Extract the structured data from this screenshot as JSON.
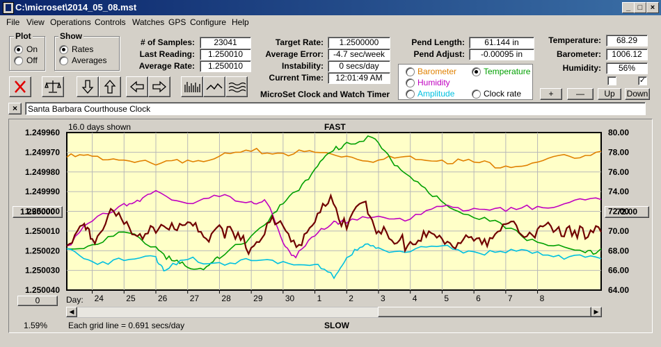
{
  "window": {
    "title": "C:\\microset\\2014_05_08.mst",
    "min": "_",
    "max": "□",
    "close": "×"
  },
  "menu": [
    "File",
    "View",
    "Operations",
    "Controls",
    "Watches",
    "GPS",
    "Configure",
    "Help"
  ],
  "plot_group": {
    "title": "Plot",
    "options": [
      {
        "label": "On",
        "selected": true
      },
      {
        "label": "Off",
        "selected": false
      }
    ]
  },
  "show_group": {
    "title": "Show",
    "options": [
      {
        "label": "Rates",
        "selected": true
      },
      {
        "label": "Averages",
        "selected": false
      }
    ]
  },
  "stats": {
    "samples_label": "# of Samples:",
    "samples": "23041",
    "last_label": "Last Reading:",
    "last": "1.250010",
    "avg_label": "Average Rate:",
    "avg": "1.250010",
    "target_label": "Target Rate:",
    "target": "1.2500000",
    "avg_err_label": "Average Error:",
    "avg_err": "-4.7 sec/week",
    "instab_label": "Instability:",
    "instab": "0 secs/day",
    "time_label": "Current Time:",
    "time": "12:01:49 AM",
    "pend_len_label": "Pend Length:",
    "pend_len": "61.144 in",
    "pend_adj_label": "Pend Adjust:",
    "pend_adj": "-0.00095 in",
    "temp_label": "Temperature:",
    "temp": "68.29",
    "baro_label": "Barometer:",
    "baro": "1006.12",
    "hum_label": "Humidity:",
    "hum": "56%"
  },
  "timer_title": "MicroSet Clock and Watch Timer",
  "sensor_options": [
    {
      "label": "Barometer",
      "color": "#e08000",
      "selected": false
    },
    {
      "label": "Temperature",
      "color": "#00a000",
      "selected": true
    },
    {
      "label": "Humidity",
      "color": "#c000c0",
      "selected": false
    },
    {
      "label": "Amplitude",
      "color": "#00c0e0",
      "selected": false
    },
    {
      "label": "Clock rate",
      "color": "#000000",
      "selected": false
    }
  ],
  "adjust_buttons": {
    "plus": "+",
    "minus": "—",
    "up": "Up",
    "down": "Down"
  },
  "checkboxes": [
    {
      "checked": false
    },
    {
      "checked": true
    }
  ],
  "clock_name": {
    "close": "×",
    "value": "Santa Barbara Courthouse Clock"
  },
  "chart_info": {
    "days_shown": "16.0 days shown",
    "fast": "FAST",
    "slow": "SLOW",
    "grid_note": "Each grid line = 0.691 secs/day",
    "percent": "1.59%",
    "day_label": "Day:",
    "left_button": "1.250000",
    "right_button": "72.00",
    "zero_button": "0"
  },
  "chart_data": {
    "type": "line",
    "x_ticks": [
      "24",
      "25",
      "26",
      "27",
      "28",
      "29",
      "30",
      "1",
      "2",
      "3",
      "4",
      "5",
      "6",
      "7",
      "8"
    ],
    "left_axis": {
      "labels": [
        "1.249960",
        "1.249970",
        "1.249980",
        "1.249990",
        "1.250000",
        "1.250010",
        "1.250020",
        "1.250030",
        "1.250040"
      ],
      "range": [
        1.24996,
        1.25004
      ],
      "inverted": true
    },
    "right_axis": {
      "labels": [
        "80.00",
        "78.00",
        "76.00",
        "74.00",
        "72.00",
        "70.00",
        "68.00",
        "66.00",
        "64.00"
      ],
      "range": [
        64,
        80
      ]
    },
    "xlim": [
      23.2,
      40.0
    ],
    "series": [
      {
        "name": "Barometer",
        "color": "#e08000",
        "axis": "right",
        "points": [
          [
            23.2,
            77.5
          ],
          [
            24,
            77.6
          ],
          [
            25,
            77.2
          ],
          [
            26,
            76.7
          ],
          [
            27,
            77.2
          ],
          [
            28,
            77.6
          ],
          [
            29,
            78.1
          ],
          [
            30,
            77.9
          ],
          [
            31,
            78.0
          ],
          [
            32,
            77.6
          ],
          [
            33,
            77.2
          ],
          [
            34,
            77.6
          ],
          [
            35,
            77.2
          ],
          [
            36,
            77.0
          ],
          [
            37,
            76.6
          ],
          [
            38,
            77.0
          ],
          [
            39,
            77.6
          ],
          [
            40,
            78.1
          ]
        ]
      },
      {
        "name": "Temperature",
        "color": "#00a000",
        "axis": "right",
        "points": [
          [
            23.2,
            68.2
          ],
          [
            24,
            68.6
          ],
          [
            25,
            69.9
          ],
          [
            26,
            68.4
          ],
          [
            26.5,
            67.0
          ],
          [
            27,
            66.3
          ],
          [
            27.6,
            66.4
          ],
          [
            28,
            67.2
          ],
          [
            29,
            69.5
          ],
          [
            29.8,
            72.0
          ],
          [
            30.4,
            74.0
          ],
          [
            31,
            76.3
          ],
          [
            31.5,
            78.0
          ],
          [
            32,
            79.0
          ],
          [
            32.8,
            79.5
          ],
          [
            33.4,
            77.2
          ],
          [
            34,
            75.5
          ],
          [
            34.7,
            73.5
          ],
          [
            35.5,
            72.0
          ],
          [
            36.5,
            71.0
          ],
          [
            37.5,
            69.5
          ],
          [
            38.5,
            68.5
          ],
          [
            39.5,
            67.8
          ],
          [
            40,
            68.2
          ]
        ]
      },
      {
        "name": "Humidity",
        "color": "#c000c0",
        "axis": "right",
        "points": [
          [
            23.2,
            68.5
          ],
          [
            24,
            71.0
          ],
          [
            25,
            72.8
          ],
          [
            25.5,
            73.0
          ],
          [
            26,
            74.1
          ],
          [
            27,
            72.8
          ],
          [
            28,
            73.5
          ],
          [
            29,
            73.0
          ],
          [
            29.5,
            72.8
          ],
          [
            30,
            68.8
          ],
          [
            30.4,
            67.3
          ],
          [
            31,
            69.5
          ],
          [
            31.6,
            71.0
          ],
          [
            32,
            70.8
          ],
          [
            33,
            71.5
          ],
          [
            34,
            71.2
          ],
          [
            35,
            72.5
          ],
          [
            36,
            72.3
          ],
          [
            37,
            72.0
          ],
          [
            38,
            72.5
          ],
          [
            39,
            72.9
          ],
          [
            40,
            73.2
          ]
        ]
      },
      {
        "name": "Amplitude",
        "color": "#00c0e0",
        "axis": "right",
        "points": [
          [
            23.2,
            68.2
          ],
          [
            24,
            66.9
          ],
          [
            25,
            67.0
          ],
          [
            26,
            67.4
          ],
          [
            26.3,
            66.0
          ],
          [
            27,
            67.1
          ],
          [
            28,
            66.8
          ],
          [
            29,
            67.0
          ],
          [
            30,
            66.9
          ],
          [
            31,
            66.6
          ],
          [
            31.6,
            65.2
          ],
          [
            32,
            67.3
          ],
          [
            32.5,
            68.4
          ],
          [
            33,
            68.3
          ],
          [
            34,
            67.9
          ],
          [
            35,
            68.5
          ],
          [
            36,
            67.9
          ],
          [
            37,
            67.8
          ],
          [
            38,
            67.9
          ],
          [
            39,
            67.4
          ],
          [
            40,
            67.2
          ]
        ]
      },
      {
        "name": "Clock rate",
        "color": "#700000",
        "axis": "right",
        "points": [
          [
            23.2,
            68.5
          ],
          [
            23.7,
            70.6
          ],
          [
            24,
            69.2
          ],
          [
            24.5,
            71.6
          ],
          [
            25,
            70.7
          ],
          [
            25.5,
            69.7
          ],
          [
            26,
            69.8
          ],
          [
            26.5,
            70.8
          ],
          [
            27,
            70.9
          ],
          [
            27.5,
            69.4
          ],
          [
            28,
            70.6
          ],
          [
            28.5,
            69.2
          ],
          [
            29,
            68.3
          ],
          [
            29.5,
            70.8
          ],
          [
            30,
            70.5
          ],
          [
            30.5,
            68.6
          ],
          [
            31,
            70.9
          ],
          [
            31.5,
            73.6
          ],
          [
            32,
            70.2
          ],
          [
            32.6,
            73.0
          ],
          [
            33,
            70.0
          ],
          [
            33.5,
            68.7
          ],
          [
            34,
            68.9
          ],
          [
            34.5,
            69.4
          ],
          [
            35,
            69.2
          ],
          [
            35.5,
            68.8
          ],
          [
            36,
            69.0
          ],
          [
            36.5,
            69.3
          ],
          [
            37,
            70.7
          ],
          [
            37.5,
            69.6
          ],
          [
            38,
            70.2
          ],
          [
            38.5,
            69.9
          ],
          [
            39,
            70.5
          ],
          [
            39.5,
            69.2
          ],
          [
            40,
            69.9
          ]
        ]
      }
    ]
  }
}
